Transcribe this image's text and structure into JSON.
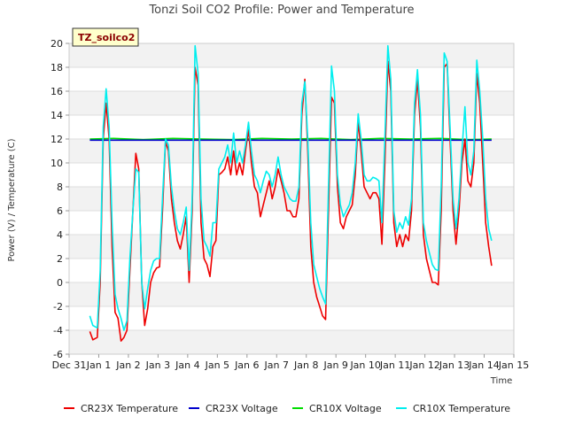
{
  "chart_data": {
    "type": "line",
    "title": "Tonzi Soil CO2 Profile: Power and Temperature",
    "tag": "TZ_soilco2",
    "xlabel": "Time",
    "ylabel": "Power (V) / Temperature (C)",
    "xlim": [
      0,
      15
    ],
    "ylim": [
      -6,
      20
    ],
    "x_ticks": [
      0,
      1,
      2,
      3,
      4,
      5,
      6,
      7,
      8,
      9,
      10,
      11,
      12,
      13,
      14,
      15
    ],
    "x_tick_labels": [
      "Dec 31",
      "Jan 1",
      "Jan 2",
      "Jan 3",
      "Jan 4",
      "Jan 5",
      "Jan 6",
      "Jan 7",
      "Jan 8",
      "Jan 9",
      "Jan 10",
      "Jan 11",
      "Jan 12",
      "Jan 13",
      "Jan 14",
      "Jan 15"
    ],
    "y_ticks": [
      -6,
      -4,
      -2,
      0,
      2,
      4,
      6,
      8,
      10,
      12,
      14,
      16,
      18,
      20
    ],
    "y_tick_labels": [
      "-6",
      "-4",
      "-2",
      "0",
      "2",
      "4",
      "6",
      "8",
      "10",
      "12",
      "14",
      "16",
      "18",
      "20"
    ],
    "grid": true,
    "legend_position": "bottom",
    "series": [
      {
        "name": "CR23X Temperature",
        "color": "#ee0000",
        "points": [
          [
            0.7,
            -4.1
          ],
          [
            0.8,
            -4.8
          ],
          [
            0.95,
            -4.6
          ],
          [
            1.05,
            0
          ],
          [
            1.15,
            12
          ],
          [
            1.25,
            15.0
          ],
          [
            1.35,
            12
          ],
          [
            1.45,
            3
          ],
          [
            1.55,
            -2.5
          ],
          [
            1.65,
            -3.0
          ],
          [
            1.75,
            -4.9
          ],
          [
            1.85,
            -4.6
          ],
          [
            1.95,
            -4.0
          ],
          [
            2.05,
            1
          ],
          [
            2.15,
            6
          ],
          [
            2.25,
            10.8
          ],
          [
            2.35,
            9.5
          ],
          [
            2.45,
            0
          ],
          [
            2.55,
            -3.6
          ],
          [
            2.65,
            -2.2
          ],
          [
            2.75,
            0
          ],
          [
            2.85,
            0.8
          ],
          [
            2.95,
            1.2
          ],
          [
            3.05,
            1.3
          ],
          [
            3.15,
            6
          ],
          [
            3.25,
            11.8
          ],
          [
            3.35,
            11.0
          ],
          [
            3.45,
            7
          ],
          [
            3.55,
            5
          ],
          [
            3.65,
            3.5
          ],
          [
            3.75,
            2.8
          ],
          [
            3.85,
            4
          ],
          [
            3.95,
            5.5
          ],
          [
            4.05,
            0
          ],
          [
            4.15,
            6
          ],
          [
            4.25,
            18.0
          ],
          [
            4.35,
            16.5
          ],
          [
            4.45,
            5
          ],
          [
            4.55,
            2
          ],
          [
            4.65,
            1.5
          ],
          [
            4.75,
            0.5
          ],
          [
            4.85,
            3
          ],
          [
            4.95,
            3.5
          ],
          [
            5.05,
            9
          ],
          [
            5.15,
            9.2
          ],
          [
            5.25,
            9.5
          ],
          [
            5.35,
            10.5
          ],
          [
            5.45,
            9
          ],
          [
            5.55,
            11
          ],
          [
            5.65,
            9
          ],
          [
            5.75,
            10
          ],
          [
            5.85,
            9
          ],
          [
            5.95,
            11
          ],
          [
            6.05,
            12.8
          ],
          [
            6.15,
            10
          ],
          [
            6.25,
            8
          ],
          [
            6.35,
            7.5
          ],
          [
            6.45,
            5.5
          ],
          [
            6.55,
            6.5
          ],
          [
            6.65,
            7.5
          ],
          [
            6.75,
            8.5
          ],
          [
            6.85,
            7
          ],
          [
            6.95,
            8
          ],
          [
            7.05,
            9.5
          ],
          [
            7.15,
            8.5
          ],
          [
            7.25,
            7.5
          ],
          [
            7.35,
            6
          ],
          [
            7.45,
            6
          ],
          [
            7.55,
            5.5
          ],
          [
            7.65,
            5.5
          ],
          [
            7.75,
            7
          ],
          [
            7.85,
            14
          ],
          [
            7.95,
            17.0
          ],
          [
            8.05,
            11
          ],
          [
            8.15,
            3
          ],
          [
            8.25,
            0
          ],
          [
            8.35,
            -1.2
          ],
          [
            8.45,
            -2
          ],
          [
            8.55,
            -2.8
          ],
          [
            8.65,
            -3.1
          ],
          [
            8.75,
            6
          ],
          [
            8.85,
            15.5
          ],
          [
            8.95,
            15
          ],
          [
            9.05,
            8
          ],
          [
            9.15,
            5
          ],
          [
            9.25,
            4.5
          ],
          [
            9.35,
            5.5
          ],
          [
            9.45,
            6
          ],
          [
            9.55,
            6.5
          ],
          [
            9.65,
            9
          ],
          [
            9.75,
            13.5
          ],
          [
            9.85,
            11
          ],
          [
            9.95,
            8
          ],
          [
            10.05,
            7.5
          ],
          [
            10.15,
            7
          ],
          [
            10.25,
            7.5
          ],
          [
            10.35,
            7.5
          ],
          [
            10.45,
            7
          ],
          [
            10.55,
            3.2
          ],
          [
            10.65,
            10
          ],
          [
            10.75,
            18.5
          ],
          [
            10.85,
            16
          ],
          [
            10.95,
            5
          ],
          [
            11.05,
            3
          ],
          [
            11.15,
            4
          ],
          [
            11.25,
            3
          ],
          [
            11.35,
            4
          ],
          [
            11.45,
            3.5
          ],
          [
            11.55,
            6
          ],
          [
            11.65,
            14
          ],
          [
            11.75,
            17.0
          ],
          [
            11.85,
            13
          ],
          [
            11.95,
            4
          ],
          [
            12.05,
            2
          ],
          [
            12.15,
            1
          ],
          [
            12.25,
            0
          ],
          [
            12.35,
            0
          ],
          [
            12.45,
            -0.2
          ],
          [
            12.55,
            6
          ],
          [
            12.65,
            18
          ],
          [
            12.75,
            18.3
          ],
          [
            12.85,
            12
          ],
          [
            12.95,
            6
          ],
          [
            13.05,
            3.2
          ],
          [
            13.15,
            6
          ],
          [
            13.25,
            10
          ],
          [
            13.35,
            12
          ],
          [
            13.45,
            8.5
          ],
          [
            13.55,
            8
          ],
          [
            13.65,
            10
          ],
          [
            13.75,
            17.5
          ],
          [
            13.85,
            15
          ],
          [
            13.95,
            10
          ],
          [
            14.05,
            5
          ],
          [
            14.15,
            3
          ],
          [
            14.25,
            1.4
          ]
        ]
      },
      {
        "name": "CR23X Voltage",
        "color": "#0000cc",
        "points": [
          [
            0.7,
            11.9
          ],
          [
            4.0,
            11.9
          ],
          [
            8.0,
            11.9
          ],
          [
            12.0,
            11.9
          ],
          [
            14.25,
            11.9
          ]
        ]
      },
      {
        "name": "CR10X Voltage",
        "color": "#00dd00",
        "points": [
          [
            0.7,
            12.0
          ],
          [
            1.5,
            12.05
          ],
          [
            2.5,
            11.95
          ],
          [
            3.5,
            12.05
          ],
          [
            4.5,
            12.0
          ],
          [
            5.5,
            11.95
          ],
          [
            6.5,
            12.05
          ],
          [
            7.5,
            12.0
          ],
          [
            8.5,
            12.05
          ],
          [
            9.5,
            11.95
          ],
          [
            10.5,
            12.05
          ],
          [
            11.5,
            12.0
          ],
          [
            12.5,
            12.05
          ],
          [
            13.5,
            11.95
          ],
          [
            14.25,
            12.0
          ]
        ]
      },
      {
        "name": "CR10X Temperature",
        "color": "#00eeee",
        "points": [
          [
            0.7,
            -2.8
          ],
          [
            0.8,
            -3.6
          ],
          [
            0.95,
            -3.8
          ],
          [
            1.05,
            1
          ],
          [
            1.15,
            13
          ],
          [
            1.25,
            16.2
          ],
          [
            1.35,
            13
          ],
          [
            1.45,
            5
          ],
          [
            1.55,
            -1.0
          ],
          [
            1.65,
            -2.2
          ],
          [
            1.75,
            -3.0
          ],
          [
            1.85,
            -4.0
          ],
          [
            1.95,
            -3.2
          ],
          [
            2.05,
            2
          ],
          [
            2.15,
            6
          ],
          [
            2.25,
            9.5
          ],
          [
            2.35,
            9.2
          ],
          [
            2.45,
            0
          ],
          [
            2.55,
            -2.2
          ],
          [
            2.65,
            -0.5
          ],
          [
            2.75,
            1
          ],
          [
            2.85,
            1.8
          ],
          [
            2.95,
            2
          ],
          [
            3.05,
            2
          ],
          [
            3.15,
            7
          ],
          [
            3.25,
            12
          ],
          [
            3.35,
            11.5
          ],
          [
            3.45,
            8
          ],
          [
            3.55,
            6
          ],
          [
            3.65,
            4.5
          ],
          [
            3.75,
            4
          ],
          [
            3.85,
            5
          ],
          [
            3.95,
            6.3
          ],
          [
            4.05,
            1
          ],
          [
            4.15,
            7
          ],
          [
            4.25,
            19.8
          ],
          [
            4.35,
            17.5
          ],
          [
            4.45,
            7
          ],
          [
            4.55,
            3.5
          ],
          [
            4.65,
            3
          ],
          [
            4.75,
            2.2
          ],
          [
            4.85,
            5
          ],
          [
            4.95,
            5
          ],
          [
            5.05,
            9.5
          ],
          [
            5.15,
            10
          ],
          [
            5.25,
            10.5
          ],
          [
            5.35,
            11.5
          ],
          [
            5.45,
            10
          ],
          [
            5.55,
            12.5
          ],
          [
            5.65,
            10
          ],
          [
            5.75,
            11
          ],
          [
            5.85,
            10
          ],
          [
            5.95,
            11.5
          ],
          [
            6.05,
            13.4
          ],
          [
            6.15,
            11
          ],
          [
            6.25,
            9
          ],
          [
            6.35,
            8.5
          ],
          [
            6.45,
            7.5
          ],
          [
            6.55,
            8.5
          ],
          [
            6.65,
            9.3
          ],
          [
            6.75,
            9
          ],
          [
            6.85,
            8
          ],
          [
            6.95,
            9
          ],
          [
            7.05,
            10.5
          ],
          [
            7.15,
            9
          ],
          [
            7.25,
            8
          ],
          [
            7.35,
            7.5
          ],
          [
            7.45,
            7
          ],
          [
            7.55,
            6.8
          ],
          [
            7.65,
            6.8
          ],
          [
            7.75,
            8
          ],
          [
            7.85,
            15
          ],
          [
            7.95,
            16.8
          ],
          [
            8.05,
            12
          ],
          [
            8.15,
            5
          ],
          [
            8.25,
            1.5
          ],
          [
            8.35,
            0.5
          ],
          [
            8.45,
            -0.5
          ],
          [
            8.55,
            -1.2
          ],
          [
            8.65,
            -1.8
          ],
          [
            8.75,
            8
          ],
          [
            8.85,
            18.1
          ],
          [
            8.95,
            16
          ],
          [
            9.05,
            9
          ],
          [
            9.15,
            6.5
          ],
          [
            9.25,
            5.5
          ],
          [
            9.35,
            6
          ],
          [
            9.45,
            6.5
          ],
          [
            9.55,
            7.5
          ],
          [
            9.65,
            10
          ],
          [
            9.75,
            14.1
          ],
          [
            9.85,
            12
          ],
          [
            9.95,
            9
          ],
          [
            10.05,
            8.5
          ],
          [
            10.15,
            8.5
          ],
          [
            10.25,
            8.8
          ],
          [
            10.35,
            8.7
          ],
          [
            10.45,
            8.5
          ],
          [
            10.55,
            5
          ],
          [
            10.65,
            12
          ],
          [
            10.75,
            19.8
          ],
          [
            10.85,
            17
          ],
          [
            10.95,
            6
          ],
          [
            11.05,
            4.2
          ],
          [
            11.15,
            5
          ],
          [
            11.25,
            4.5
          ],
          [
            11.35,
            5.5
          ],
          [
            11.45,
            4.8
          ],
          [
            11.55,
            7
          ],
          [
            11.65,
            15
          ],
          [
            11.75,
            17.8
          ],
          [
            11.85,
            14
          ],
          [
            11.95,
            5
          ],
          [
            12.05,
            3.5
          ],
          [
            12.15,
            2.5
          ],
          [
            12.25,
            1.5
          ],
          [
            12.35,
            1.1
          ],
          [
            12.45,
            1
          ],
          [
            12.55,
            8
          ],
          [
            12.65,
            19.2
          ],
          [
            12.75,
            18.5
          ],
          [
            12.85,
            13
          ],
          [
            12.95,
            7
          ],
          [
            13.05,
            4.5
          ],
          [
            13.15,
            7
          ],
          [
            13.25,
            11
          ],
          [
            13.35,
            14.7
          ],
          [
            13.45,
            10
          ],
          [
            13.55,
            9
          ],
          [
            13.65,
            11
          ],
          [
            13.75,
            18.6
          ],
          [
            13.85,
            16
          ],
          [
            13.95,
            12
          ],
          [
            14.05,
            7
          ],
          [
            14.15,
            4.5
          ],
          [
            14.25,
            3.5
          ]
        ]
      }
    ]
  }
}
